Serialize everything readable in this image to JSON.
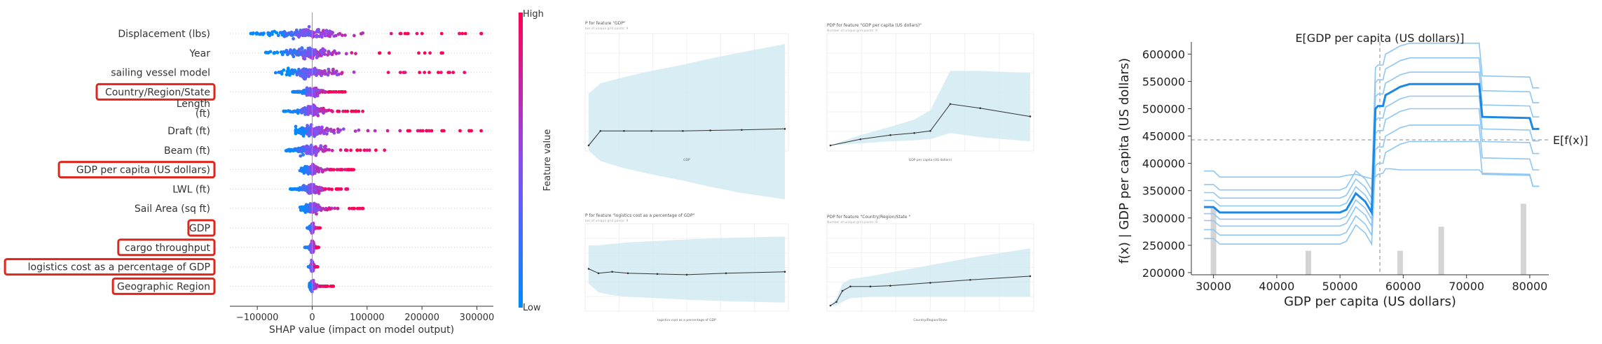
{
  "chart_data": [
    {
      "type": "scatter",
      "subtype": "shap-beeswarm",
      "title": "",
      "xlabel": "SHAP value (impact on model output)",
      "ylabel": "",
      "xlim": [
        -150000,
        330000
      ],
      "x_ticks": [
        -100000,
        0,
        100000,
        200000,
        300000
      ],
      "x_tick_labels": [
        "−100000",
        "0",
        "100000",
        "200000",
        "300000"
      ],
      "features": [
        {
          "name": "Displacement (lbs)",
          "highlighted": false,
          "spread": [
            -125000,
            315000
          ]
        },
        {
          "name": "Year",
          "highlighted": false,
          "spread": [
            -95000,
            240000
          ]
        },
        {
          "name": "sailing vessel model",
          "highlighted": false,
          "spread": [
            -70000,
            300000
          ]
        },
        {
          "name": "Country/Region/State",
          "highlighted": true,
          "spread": [
            -40000,
            60000
          ]
        },
        {
          "name": "Length\n(ft)",
          "highlighted": false,
          "spread": [
            -60000,
            95000
          ]
        },
        {
          "name": "Draft (ft)",
          "highlighted": false,
          "spread": [
            -30000,
            310000
          ]
        },
        {
          "name": "Beam (ft)",
          "highlighted": false,
          "spread": [
            -55000,
            140000
          ]
        },
        {
          "name": "GDP per capita (US dollars)",
          "highlighted": true,
          "spread": [
            -25000,
            80000
          ]
        },
        {
          "name": "LWL (ft)",
          "highlighted": false,
          "spread": [
            -45000,
            70000
          ]
        },
        {
          "name": "Sail Area (sq ft)",
          "highlighted": false,
          "spread": [
            -25000,
            110000
          ]
        },
        {
          "name": "GDP",
          "highlighted": true,
          "spread": [
            -10000,
            15000
          ]
        },
        {
          "name": "cargo throughput",
          "highlighted": true,
          "spread": [
            -15000,
            12000
          ]
        },
        {
          "name": "logistics cost as a percentage of GDP",
          "highlighted": true,
          "spread": [
            -8000,
            10000
          ]
        },
        {
          "name": "Geographic Region",
          "highlighted": true,
          "spread": [
            -5000,
            40000
          ]
        }
      ],
      "colorbar": {
        "label": "Feature value",
        "high": "High",
        "low": "Low",
        "colors": {
          "high": "#ff0052",
          "low": "#008bfb"
        }
      },
      "highlight_color": "#e0261b"
    },
    {
      "type": "line",
      "subtype": "pdp-grid",
      "panels": [
        {
          "title": "P for feature \"GDP\"",
          "subtitle": "ber of unique grid points: 9",
          "xlabel": "GDP",
          "ylabel": "",
          "x": [
            0.0,
            0.06,
            0.18,
            0.32,
            0.48,
            0.62,
            0.78,
            1.0
          ],
          "y": [
            0.0,
            0.14,
            0.14,
            0.14,
            0.14,
            0.145,
            0.15,
            0.16
          ],
          "band_upper": [
            0.5,
            0.6,
            0.66,
            0.72,
            0.78,
            0.84,
            0.9,
            0.98
          ],
          "band_lower": [
            -0.05,
            -0.15,
            -0.22,
            -0.28,
            -0.34,
            -0.4,
            -0.46,
            -0.52
          ]
        },
        {
          "title": "PDP for feature \"GDP per capita (US dollars)\"",
          "subtitle": "Number of unique grid points: 9",
          "xlabel": "GDP per capita (US dollars)",
          "ylabel": "",
          "x": [
            0.0,
            0.15,
            0.3,
            0.42,
            0.5,
            0.6,
            0.75,
            1.0
          ],
          "y": [
            0.0,
            0.06,
            0.1,
            0.12,
            0.14,
            0.4,
            0.36,
            0.28
          ],
          "band_upper": [
            0.0,
            0.1,
            0.18,
            0.25,
            0.34,
            0.72,
            0.72,
            0.7
          ],
          "band_lower": [
            0.0,
            0.02,
            0.04,
            0.05,
            0.06,
            0.12,
            0.08,
            0.04
          ]
        },
        {
          "title": "P for feature \"logistics cost as a percentage of GDP\"",
          "subtitle": "ber of unique grid points: 9",
          "xlabel": "logistics cost as a percentage of GDP",
          "ylabel": "",
          "x": [
            0.0,
            0.05,
            0.12,
            0.2,
            0.35,
            0.5,
            0.7,
            1.0
          ],
          "y": [
            0.5,
            0.44,
            0.46,
            0.44,
            0.43,
            0.42,
            0.44,
            0.46
          ],
          "band_upper": [
            0.82,
            0.82,
            0.84,
            0.86,
            0.88,
            0.9,
            0.92,
            0.94
          ],
          "band_lower": [
            0.3,
            0.18,
            0.14,
            0.12,
            0.1,
            0.08,
            0.06,
            0.04
          ]
        },
        {
          "title": "PDP for feature \"Country/Region/State \"",
          "subtitle": "Number of unique grid points: 9",
          "xlabel": "Country/Region/State",
          "ylabel": "",
          "x": [
            0.0,
            0.03,
            0.06,
            0.1,
            0.2,
            0.3,
            0.5,
            0.7,
            1.0
          ],
          "y": [
            0.0,
            0.05,
            0.2,
            0.26,
            0.26,
            0.27,
            0.31,
            0.35,
            0.4
          ],
          "band_upper": [
            0.0,
            0.1,
            0.3,
            0.36,
            0.4,
            0.45,
            0.55,
            0.65,
            0.78
          ],
          "band_lower": [
            0.0,
            0.0,
            0.05,
            0.1,
            0.12,
            0.12,
            0.12,
            0.12,
            0.12
          ]
        }
      ]
    },
    {
      "type": "line",
      "subtype": "ice",
      "title": "E[GDP per capita (US dollars)]",
      "xlabel": "GDP per capita (US dollars)",
      "ylabel": "f(x) | GDP per capita (US dollars)",
      "xlim": [
        26500,
        83000
      ],
      "ylim": [
        196000,
        612000
      ],
      "x_ticks": [
        30000,
        40000,
        50000,
        60000,
        70000,
        80000
      ],
      "y_ticks": [
        200000,
        250000,
        300000,
        350000,
        400000,
        450000,
        500000,
        550000,
        600000
      ],
      "expected_value_label": "E[f(x)]",
      "expected_fx": 443000,
      "expected_x": 56300,
      "grid_x": [
        28500,
        30000,
        31000,
        50000,
        51000,
        52500,
        54000,
        55000,
        55600,
        56000,
        56800,
        57200,
        58000,
        59500,
        61000,
        72000,
        72500,
        80000,
        80500,
        81500
      ],
      "mean_curve": [
        320000,
        320000,
        310000,
        310000,
        315000,
        345000,
        330000,
        310000,
        500000,
        505000,
        505000,
        525000,
        530000,
        540000,
        545000,
        545000,
        485000,
        483000,
        463000,
        463000
      ],
      "ice_offsets": [
        -105000,
        -75000,
        -45000,
        -22000,
        22000,
        48000,
        75000
      ],
      "ice_top_curve": [
        386000,
        386000,
        375000,
        375000,
        378000,
        380000,
        375000,
        372000,
        375000,
        380000,
        382000,
        390000,
        390000,
        388000,
        388000,
        388000,
        382000,
        380000,
        358000,
        358000
      ],
      "histogram": {
        "bins": [
          {
            "x": 30000,
            "height": 320000
          },
          {
            "x": 45000,
            "height": 240000
          },
          {
            "x": 59500,
            "height": 240000
          },
          {
            "x": 66000,
            "height": 284000
          },
          {
            "x": 79000,
            "height": 326000
          }
        ]
      },
      "colors": {
        "ice": "#8fc6f2",
        "mean": "#1e88e5",
        "hist": "#d4d4d4"
      }
    }
  ]
}
